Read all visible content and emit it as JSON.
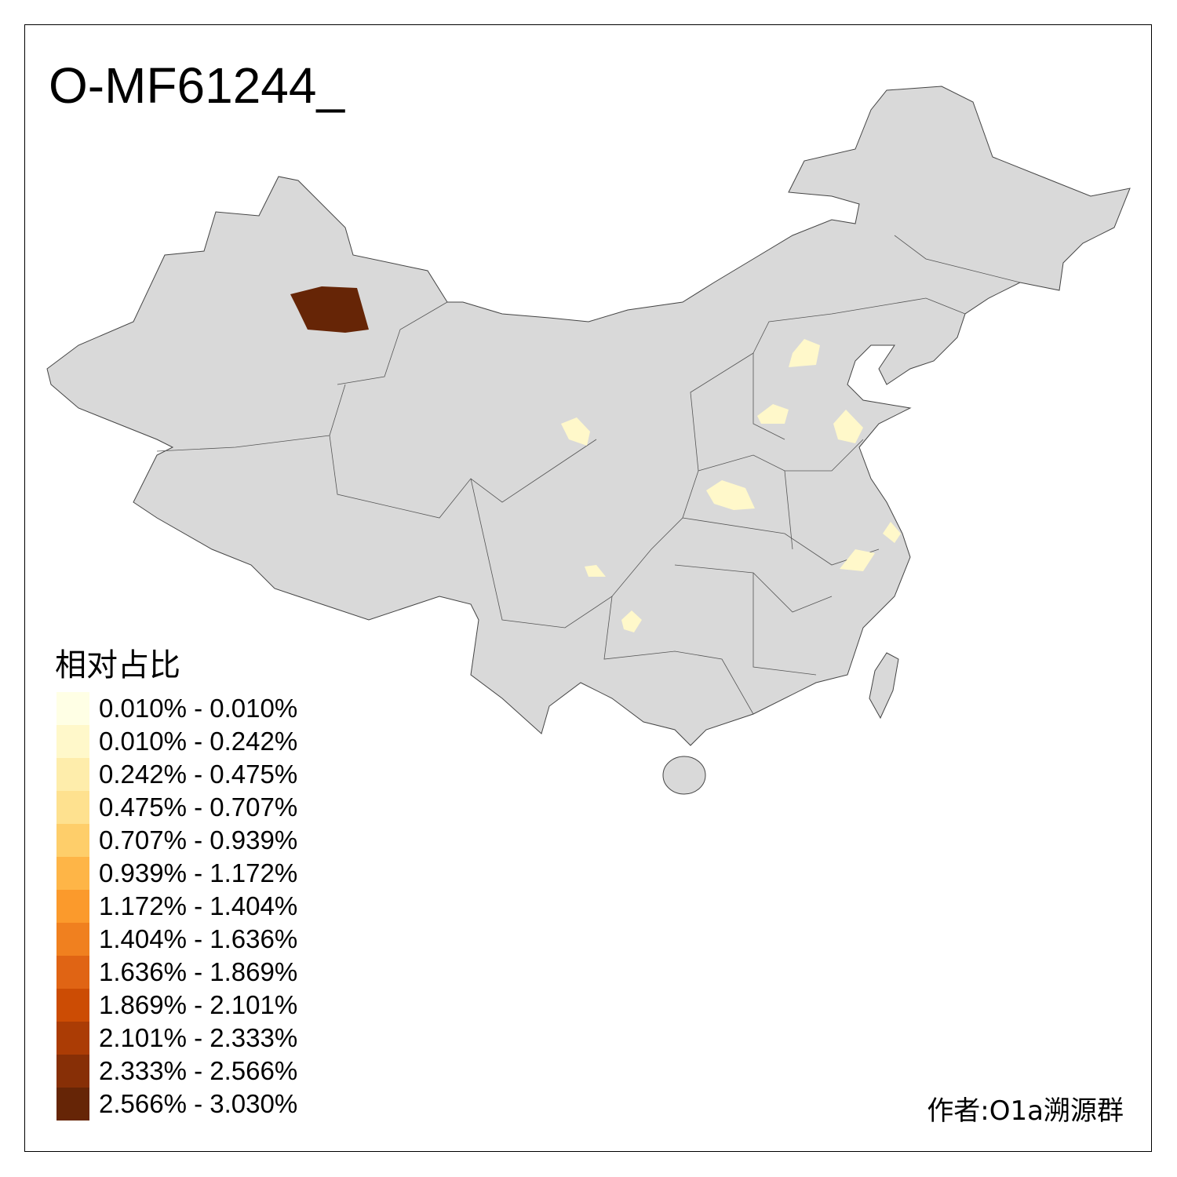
{
  "title": "O-MF61244_",
  "legend": {
    "title": "相对占比",
    "items": [
      {
        "label": "0.010% - 0.010%",
        "color": "#FFFFE5"
      },
      {
        "label": "0.010% - 0.242%",
        "color": "#FFF8CA"
      },
      {
        "label": "0.242% - 0.475%",
        "color": "#FEEDAB"
      },
      {
        "label": "0.475% - 0.707%",
        "color": "#FEE18F"
      },
      {
        "label": "0.707% - 0.939%",
        "color": "#FECE6A"
      },
      {
        "label": "0.939% - 1.172%",
        "color": "#FEB547"
      },
      {
        "label": "1.172% - 1.404%",
        "color": "#FB9A2C"
      },
      {
        "label": "1.404% - 1.636%",
        "color": "#F0801F"
      },
      {
        "label": "1.636% - 1.869%",
        "color": "#E06414"
      },
      {
        "label": "1.869% - 2.101%",
        "color": "#CC4C04"
      },
      {
        "label": "2.101% - 2.333%",
        "color": "#AB3C05"
      },
      {
        "label": "2.333% - 2.566%",
        "color": "#872F06"
      },
      {
        "label": "2.566% - 3.030%",
        "color": "#662506"
      }
    ]
  },
  "author": "作者:O1a溯源群",
  "colors": {
    "base_region": "#D9D9D9",
    "highlight_low": "#FFF8CA",
    "highlight_high": "#662506"
  }
}
